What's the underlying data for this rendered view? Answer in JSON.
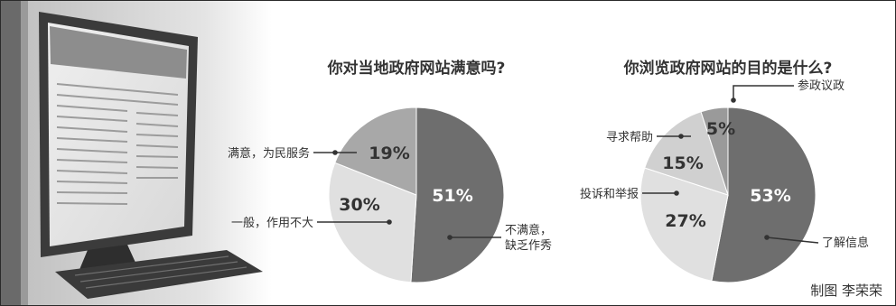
{
  "credit": "制图 李荣荣",
  "colors": {
    "dark": "#6e6e6e",
    "mid": "#a8a8a8",
    "light": "#dedede",
    "lighter": "#e6e6e6",
    "ink": "#333333"
  },
  "chart_data": [
    {
      "type": "pie",
      "title": "你对当地政府网站满意吗?",
      "slices": [
        {
          "label": "不满意，\n缺乏作秀",
          "value": 51,
          "value_label": "51%",
          "color": "#6e6e6e"
        },
        {
          "label": "一般，作用不大",
          "value": 30,
          "value_label": "30%",
          "color": "#e0e0e0"
        },
        {
          "label": "满意，为民服务",
          "value": 19,
          "value_label": "19%",
          "color": "#a8a8a8"
        }
      ]
    },
    {
      "type": "pie",
      "title": "你浏览政府网站的目的是什么?",
      "slices": [
        {
          "label": "了解信息",
          "value": 53,
          "value_label": "53%",
          "color": "#6e6e6e"
        },
        {
          "label": "投诉和举报",
          "value": 27,
          "value_label": "27%",
          "color": "#e0e0e0"
        },
        {
          "label": "寻求帮助",
          "value": 15,
          "value_label": "15%",
          "color": "#d0d0d0"
        },
        {
          "label": "参政议政",
          "value": 5,
          "value_label": "5%",
          "color": "#9a9a9a"
        }
      ]
    }
  ]
}
